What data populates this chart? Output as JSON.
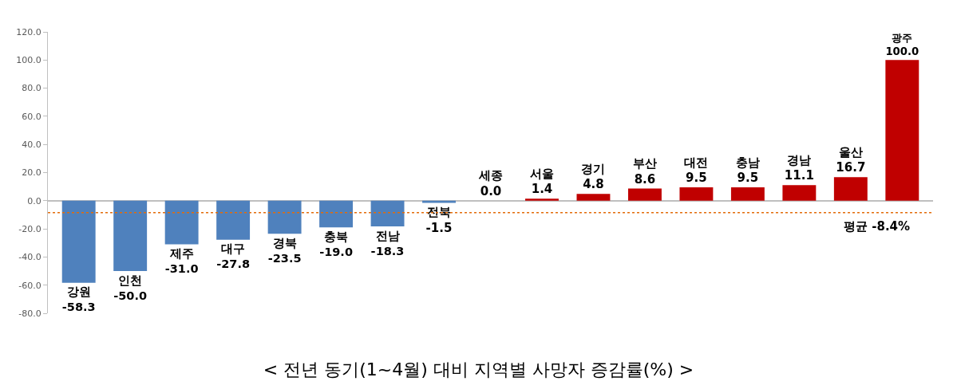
{
  "chart_data": {
    "type": "bar",
    "title": "< 전년 동기(1~4월) 대비 지역별 사망자 증감률(%) >",
    "categories": [
      "강원",
      "인천",
      "제주",
      "대구",
      "경북",
      "충북",
      "전남",
      "전북",
      "세종",
      "서울",
      "경기",
      "부산",
      "대전",
      "충남",
      "경남",
      "울산",
      "광주"
    ],
    "values": [
      -58.3,
      -50.0,
      -31.0,
      -27.8,
      -23.5,
      -19.0,
      -18.3,
      -1.5,
      0.0,
      1.4,
      4.8,
      8.6,
      9.5,
      9.5,
      11.1,
      16.7,
      100.0
    ],
    "value_labels": [
      "-58.3",
      "-50.0",
      "-31.0",
      "-27.8",
      "-23.5",
      "-19.0",
      "-18.3",
      "-1.5",
      "0.0",
      "1.4",
      "4.8",
      "8.6",
      "9.5",
      "9.5",
      "11.1",
      "16.7",
      "100.0"
    ],
    "colors": [
      "#4f81bd",
      "#4f81bd",
      "#4f81bd",
      "#4f81bd",
      "#4f81bd",
      "#4f81bd",
      "#4f81bd",
      "#4f81bd",
      "#c00000",
      "#c00000",
      "#c00000",
      "#c00000",
      "#c00000",
      "#c00000",
      "#c00000",
      "#c00000",
      "#c00000"
    ],
    "ylim": [
      -80,
      120
    ],
    "yticks": [
      {
        "value": -80,
        "label": "-80.0"
      },
      {
        "value": -60,
        "label": "-60.0"
      },
      {
        "value": -40,
        "label": "-40.0"
      },
      {
        "value": -20,
        "label": "-20.0"
      },
      {
        "value": 0,
        "label": "0.0"
      },
      {
        "value": 20,
        "label": "20.0"
      },
      {
        "value": 40,
        "label": "40.0"
      },
      {
        "value": 60,
        "label": "60.0"
      },
      {
        "value": 80,
        "label": "80.0"
      },
      {
        "value": 100,
        "label": "100.0"
      },
      {
        "value": 120,
        "label": "120.0"
      }
    ],
    "ref_lines": [
      {
        "axis": "y",
        "value": -8.4,
        "label": "평균 -8.4%",
        "color": "#e36c09",
        "line_style": "dotted"
      }
    ]
  }
}
